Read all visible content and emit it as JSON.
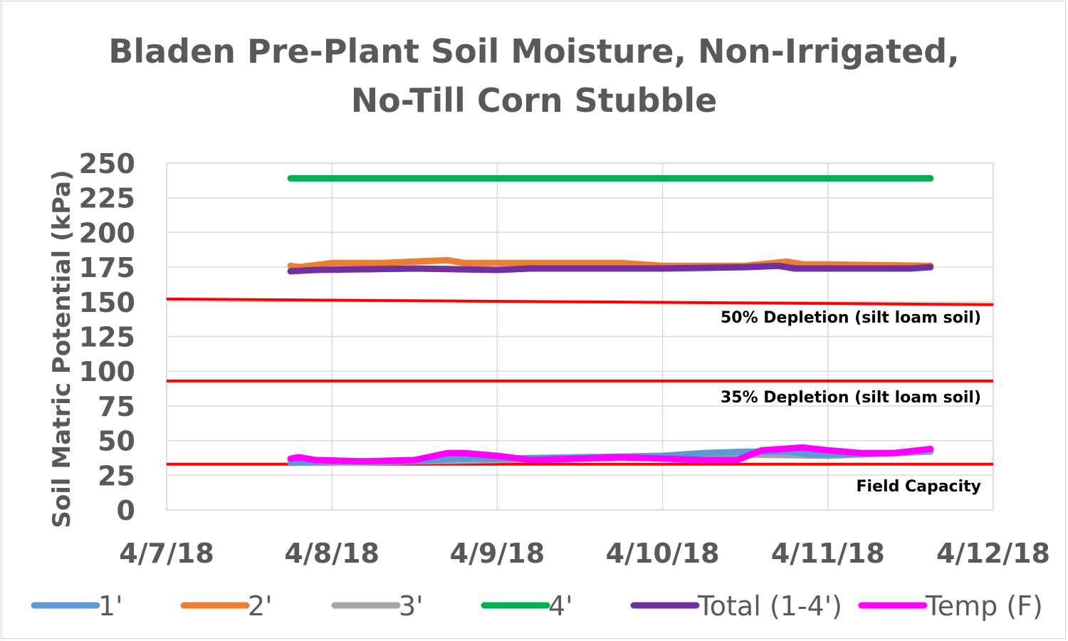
{
  "chart_data": {
    "type": "line",
    "title": [
      "Bladen Pre-Plant Soil Moisture, Non-Irrigated,",
      "No-Till Corn Stubble"
    ],
    "ylabel": "Soil Matric Potential (kPa)",
    "xlabel": "",
    "ylim": [
      0,
      250
    ],
    "yticks": [
      "0",
      "25",
      "50",
      "75",
      "100",
      "125",
      "150",
      "175",
      "200",
      "225",
      "250"
    ],
    "xlim_days": [
      0,
      5
    ],
    "xticks": [
      "4/7/18",
      "4/8/18",
      "4/9/18",
      "4/10/18",
      "4/11/18",
      "4/12/18"
    ],
    "x_unit": "days since 4/7/18",
    "grid": true,
    "legend_position": "bottom",
    "series": [
      {
        "name": "1'",
        "color": "#5B9BD5",
        "points": [
          [
            0.75,
            34
          ],
          [
            1.0,
            35
          ],
          [
            1.5,
            35
          ],
          [
            1.75,
            37
          ],
          [
            2.0,
            37
          ],
          [
            2.5,
            38
          ],
          [
            3.0,
            39
          ],
          [
            3.25,
            41
          ],
          [
            3.5,
            42
          ],
          [
            3.75,
            42
          ],
          [
            3.9,
            40
          ],
          [
            4.0,
            40
          ],
          [
            4.4,
            41
          ],
          [
            4.62,
            43
          ]
        ]
      },
      {
        "name": "2'",
        "color": "#ED7D31",
        "points": [
          [
            0.75,
            176
          ],
          [
            0.8,
            175
          ],
          [
            1.0,
            178
          ],
          [
            1.3,
            178
          ],
          [
            1.5,
            179
          ],
          [
            1.7,
            180
          ],
          [
            1.8,
            178
          ],
          [
            2.0,
            178
          ],
          [
            2.5,
            178
          ],
          [
            2.75,
            178
          ],
          [
            3.0,
            176
          ],
          [
            3.5,
            176
          ],
          [
            3.75,
            179
          ],
          [
            3.85,
            177
          ],
          [
            4.0,
            177
          ],
          [
            4.62,
            176
          ]
        ]
      },
      {
        "name": "3'",
        "color": "#A5A5A5",
        "points": [
          [
            0.75,
            34
          ],
          [
            1.0,
            34
          ],
          [
            1.5,
            35
          ],
          [
            2.0,
            36
          ],
          [
            2.5,
            37
          ],
          [
            3.0,
            38
          ],
          [
            3.5,
            40
          ],
          [
            4.0,
            39
          ],
          [
            4.62,
            42
          ]
        ]
      },
      {
        "name": "4'",
        "color": "#00B050",
        "points": [
          [
            0.75,
            239
          ],
          [
            1.5,
            239
          ],
          [
            2.5,
            239
          ],
          [
            3.5,
            239
          ],
          [
            4.62,
            239
          ]
        ]
      },
      {
        "name": "Total (1-4')",
        "color": "#7030A0",
        "points": [
          [
            0.75,
            172
          ],
          [
            0.9,
            173
          ],
          [
            1.5,
            174
          ],
          [
            2.0,
            173
          ],
          [
            2.2,
            174
          ],
          [
            3.0,
            174
          ],
          [
            3.5,
            175
          ],
          [
            3.7,
            176
          ],
          [
            3.8,
            174
          ],
          [
            4.5,
            174
          ],
          [
            4.62,
            175
          ]
        ]
      },
      {
        "name": "Temp (F)",
        "color": "#FF00FF",
        "points": [
          [
            0.75,
            37
          ],
          [
            0.8,
            38
          ],
          [
            0.9,
            36
          ],
          [
            1.2,
            35
          ],
          [
            1.5,
            36
          ],
          [
            1.7,
            41
          ],
          [
            1.8,
            41
          ],
          [
            2.0,
            39
          ],
          [
            2.2,
            36
          ],
          [
            2.5,
            37
          ],
          [
            2.75,
            38
          ],
          [
            3.0,
            37
          ],
          [
            3.25,
            36
          ],
          [
            3.45,
            36
          ],
          [
            3.6,
            43
          ],
          [
            3.85,
            45
          ],
          [
            4.0,
            43
          ],
          [
            4.2,
            41
          ],
          [
            4.4,
            41
          ],
          [
            4.62,
            44
          ]
        ]
      }
    ],
    "reference_lines": [
      {
        "label": "50% Depletion (silt loam soil)",
        "color": "#FF0000",
        "y_start": 152,
        "y_end": 148
      },
      {
        "label": "35% Depletion (silt loam soil)",
        "color": "#FF0000",
        "y_start": 93,
        "y_end": 93
      },
      {
        "label": "Field Capacity",
        "color": "#FF0000",
        "y_start": 33,
        "y_end": 33
      }
    ]
  }
}
